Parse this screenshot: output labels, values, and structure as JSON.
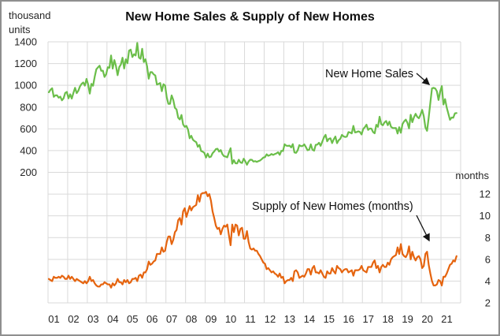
{
  "chart_data": {
    "type": "line",
    "title": "New Home Sales & Supply of New Homes",
    "x_axis": {
      "unit": "years",
      "tick_labels": [
        "01",
        "02",
        "03",
        "04",
        "05",
        "06",
        "07",
        "08",
        "09",
        "10",
        "11",
        "12",
        "13",
        "14",
        "15",
        "16",
        "17",
        "18",
        "19",
        "20",
        "21"
      ],
      "data_start": "2001-01",
      "data_end": "2021-10",
      "points_per_year": 12
    },
    "left_axis": {
      "label": "thousand units",
      "ticks": [
        1400,
        1200,
        1000,
        800,
        600,
        400,
        200
      ],
      "grid_value_top": 1400,
      "value_per_gridline": 200
    },
    "right_axis": {
      "label": "months",
      "ticks": [
        12,
        10,
        8,
        6,
        4,
        2
      ],
      "grid_value_bottom": 2,
      "value_per_gridline": 2
    },
    "grid": {
      "horizontal_intervals": 12,
      "vertical_intervals": 21,
      "color": "#d9d9d9"
    },
    "series": [
      {
        "name": "New Home Sales",
        "axis": "left",
        "color": "#6bbe4a",
        "monthly_values": [
          936,
          959,
          973,
          894,
          908,
          908,
          886,
          896,
          862,
          880,
          930,
          939,
          880,
          918,
          878,
          930,
          977,
          928,
          950,
          990,
          1013,
          1026,
          997,
          1059,
          1007,
          924,
          1013,
          996,
          1078,
          1147,
          1165,
          1180,
          1133,
          1135,
          1077,
          1102,
          1166,
          1161,
          1274,
          1154,
          1232,
          1177,
          1093,
          1167,
          1192,
          1254,
          1155,
          1239,
          1203,
          1319,
          1328,
          1260,
          1286,
          1274,
          1389,
          1255,
          1244,
          1336,
          1214,
          1239,
          1174,
          1061,
          1121,
          1121,
          1101,
          1091,
          1007,
          1013,
          1021,
          946,
          1010,
          998,
          890,
          830,
          830,
          907,
          865,
          793,
          778,
          702,
          686,
          727,
          641,
          618,
          627,
          593,
          513,
          536,
          500,
          487,
          478,
          435,
          452,
          396,
          390,
          378,
          336,
          372,
          339,
          344,
          376,
          392,
          413,
          417,
          391,
          405,
          367,
          348,
          345,
          338,
          384,
          422,
          280,
          312,
          283,
          282,
          316,
          291,
          286,
          325,
          301,
          270,
          300,
          316,
          315,
          299,
          303,
          296,
          303,
          309,
          321,
          336,
          339,
          366,
          352,
          358,
          369,
          360,
          368,
          374,
          385,
          361,
          398,
          396,
          458,
          445,
          443,
          446,
          429,
          459,
          383,
          379,
          403,
          450,
          441,
          442,
          457,
          432,
          403,
          408,
          457,
          408,
          399,
          453,
          455,
          472,
          444,
          482,
          521,
          545,
          485,
          508,
          513,
          469,
          503,
          529,
          468,
          495,
          508,
          544,
          531,
          525,
          529,
          570,
          566,
          558,
          627,
          567,
          570,
          577,
          571,
          548,
          599,
          615,
          638,
          590,
          603,
          602,
          571,
          559,
          637,
          618,
          711,
          643,
          633,
          659,
          672,
          633,
          666,
          618,
          608,
          607,
          607,
          557,
          615,
          564,
          644,
          669,
          685,
          656,
          604,
          729,
          661,
          706,
          738,
          710,
          697,
          730,
          774,
          716,
          612,
          582,
          704,
          839,
          972,
          977,
          971,
          945,
          865,
          943,
          993,
          823,
          873,
          796,
          740,
          683,
          704,
          702,
          742,
          745
        ]
      },
      {
        "name": "Supply of New Homes (months)",
        "axis": "right",
        "color": "#e5640f",
        "monthly_values": [
          4.2,
          4.1,
          4.0,
          4.4,
          4.3,
          4.3,
          4.4,
          4.3,
          4.5,
          4.4,
          4.2,
          4.2,
          4.5,
          4.2,
          4.4,
          4.2,
          4.0,
          4.2,
          4.1,
          4.0,
          3.9,
          3.8,
          4.0,
          3.8,
          4.0,
          4.4,
          4.0,
          4.1,
          3.8,
          3.6,
          3.5,
          3.5,
          3.7,
          3.7,
          3.9,
          3.8,
          3.7,
          3.7,
          3.4,
          3.8,
          3.6,
          3.8,
          4.2,
          3.9,
          3.9,
          3.7,
          4.1,
          3.9,
          4.1,
          3.8,
          3.9,
          4.2,
          4.2,
          4.3,
          4.0,
          4.5,
          4.6,
          4.3,
          4.8,
          4.8,
          5.1,
          5.8,
          5.5,
          5.6,
          5.8,
          5.9,
          6.5,
          6.5,
          6.5,
          7.1,
          6.7,
          6.8,
          7.6,
          8.1,
          8.1,
          7.4,
          7.8,
          8.5,
          8.7,
          9.6,
          9.8,
          9.2,
          10.4,
          10.7,
          9.9,
          10.4,
          10.9,
          10.5,
          10.8,
          10.9,
          11.0,
          11.9,
          11.3,
          12.0,
          12.1,
          12.1,
          12.2,
          11.8,
          12.0,
          11.4,
          10.4,
          9.8,
          9.1,
          8.8,
          8.9,
          8.3,
          8.8,
          9.1,
          9.0,
          9.2,
          8.2,
          7.3,
          9.2,
          8.5,
          9.2,
          9.1,
          8.2,
          8.8,
          8.9,
          7.9,
          7.9,
          8.6,
          7.6,
          7.0,
          6.9,
          7.0,
          6.8,
          6.8,
          6.5,
          6.3,
          6.0,
          5.7,
          5.6,
          5.1,
          5.2,
          5.0,
          4.8,
          4.9,
          4.7,
          4.6,
          4.4,
          4.7,
          4.3,
          4.4,
          3.8,
          4.0,
          4.1,
          4.1,
          4.3,
          4.0,
          4.9,
          5.0,
          4.8,
          4.3,
          4.4,
          4.5,
          4.4,
          4.7,
          5.1,
          5.1,
          4.6,
          5.2,
          5.4,
          4.8,
          4.8,
          4.7,
          5.0,
          4.7,
          4.4,
          4.3,
          4.9,
          4.7,
          4.7,
          5.2,
          4.9,
          4.7,
          5.4,
          5.2,
          5.1,
          4.8,
          5.0,
          5.1,
          5.1,
          4.8,
          4.9,
          5.0,
          4.5,
          5.0,
          5.0,
          5.0,
          5.1,
          5.4,
          5.0,
          4.9,
          4.8,
          5.3,
          5.3,
          5.3,
          5.7,
          5.9,
          5.2,
          5.4,
          4.8,
          5.3,
          5.5,
          5.3,
          5.3,
          5.7,
          5.5,
          6.0,
          6.2,
          6.3,
          6.4,
          7.1,
          6.5,
          7.4,
          6.5,
          6.3,
          6.2,
          6.5,
          7.2,
          6.0,
          6.7,
          6.2,
          5.9,
          6.2,
          6.3,
          6.0,
          5.2,
          5.4,
          6.5,
          6.7,
          5.5,
          4.7,
          4.0,
          3.6,
          3.6,
          3.7,
          4.1,
          4.0,
          3.6,
          4.4,
          4.4,
          4.7,
          5.1,
          5.5,
          5.6,
          5.9,
          5.8,
          6.3
        ]
      }
    ],
    "annotations": [
      {
        "text": "New Home Sales",
        "points_to_series": "New Home Sales"
      },
      {
        "text": "Supply of New Homes (months)",
        "points_to_series": "Supply of New Homes (months)"
      }
    ]
  }
}
